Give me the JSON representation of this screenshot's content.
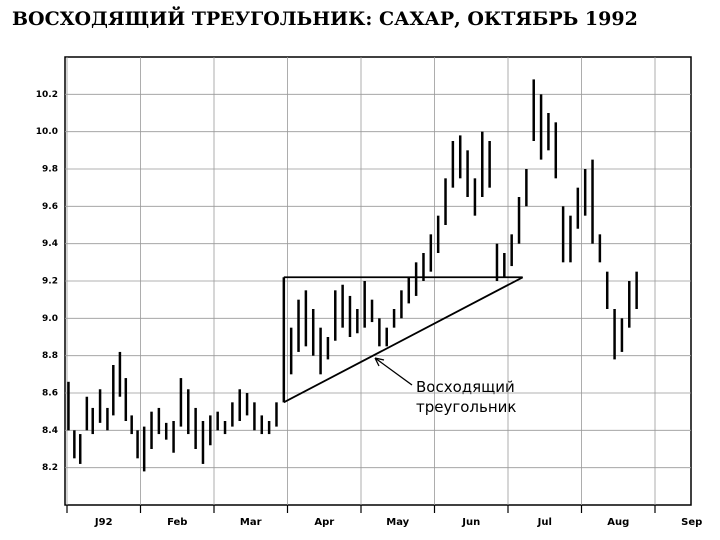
{
  "chart_data": {
    "type": "hilo",
    "title": "ВОСХОДЯЩИЙ ТРЕУГОЛЬНИК: САХАР, ОКТЯБРЬ 1992",
    "annotation": [
      "Восходящий",
      "треугольник"
    ],
    "color": "#000000",
    "xlim": [
      0,
      8.5
    ],
    "xticks": [
      {
        "value": 0,
        "label": "J92"
      },
      {
        "value": 1,
        "label": "Feb"
      },
      {
        "value": 2,
        "label": "Mar"
      },
      {
        "value": 3,
        "label": "Apr"
      },
      {
        "value": 4,
        "label": "May"
      },
      {
        "value": 5,
        "label": "Jun"
      },
      {
        "value": 6,
        "label": "Jul"
      },
      {
        "value": 7,
        "label": "Aug"
      },
      {
        "value": 8,
        "label": "Sep"
      }
    ],
    "ylim": [
      8.0,
      10.4
    ],
    "yticks": [
      {
        "value": 10.2,
        "label": "10.2"
      },
      {
        "value": 10,
        "label": "10.0"
      },
      9.8,
      9.6,
      9.4,
      9.2,
      {
        "value": 9,
        "label": "9.0"
      },
      8.8,
      8.6,
      8.4,
      8.2
    ],
    "grid": true,
    "x": [
      0.02,
      0.1,
      0.18,
      0.27,
      0.35,
      0.45,
      0.55,
      0.63,
      0.72,
      0.8,
      0.88,
      0.96,
      1.05,
      1.15,
      1.25,
      1.35,
      1.45,
      1.55,
      1.65,
      1.75,
      1.85,
      1.95,
      2.05,
      2.15,
      2.25,
      2.35,
      2.45,
      2.55,
      2.65,
      2.75,
      2.85,
      2.95,
      3.05,
      3.15,
      3.25,
      3.35,
      3.45,
      3.55,
      3.65,
      3.75,
      3.85,
      3.95,
      4.05,
      4.15,
      4.25,
      4.35,
      4.45,
      4.55,
      4.65,
      4.75,
      4.85,
      4.95,
      5.05,
      5.15,
      5.25,
      5.35,
      5.45,
      5.55,
      5.65,
      5.75,
      5.85,
      5.95,
      6.05,
      6.15,
      6.25,
      6.35,
      6.45,
      6.55,
      6.65,
      6.75,
      6.85,
      6.95,
      7.05,
      7.15,
      7.25,
      7.35,
      7.45,
      7.55,
      7.65,
      7.75
    ],
    "high": [
      8.66,
      8.4,
      8.38,
      8.58,
      8.52,
      8.62,
      8.52,
      8.75,
      8.82,
      8.68,
      8.48,
      8.4,
      8.42,
      8.5,
      8.52,
      8.44,
      8.45,
      8.68,
      8.62,
      8.52,
      8.45,
      8.48,
      8.5,
      8.45,
      8.55,
      8.62,
      8.6,
      8.55,
      8.48,
      8.45,
      8.55,
      9.22,
      8.95,
      9.1,
      9.15,
      9.05,
      8.95,
      8.9,
      9.15,
      9.18,
      9.12,
      9.05,
      9.2,
      9.1,
      9.0,
      8.95,
      9.05,
      9.15,
      9.22,
      9.3,
      9.35,
      9.45,
      9.55,
      9.75,
      9.95,
      9.98,
      9.9,
      9.75,
      10.0,
      9.95,
      9.4,
      9.35,
      9.45,
      9.65,
      9.8,
      10.28,
      10.2,
      10.1,
      10.05,
      9.6,
      9.55,
      9.7,
      9.8,
      9.85,
      9.45,
      9.25,
      9.05,
      9.0,
      9.2,
      9.25
    ],
    "low": [
      8.4,
      8.25,
      8.22,
      8.4,
      8.38,
      8.44,
      8.4,
      8.48,
      8.58,
      8.45,
      8.38,
      8.25,
      8.18,
      8.3,
      8.38,
      8.35,
      8.28,
      8.42,
      8.38,
      8.3,
      8.22,
      8.32,
      8.4,
      8.38,
      8.42,
      8.45,
      8.48,
      8.4,
      8.38,
      8.38,
      8.42,
      8.55,
      8.7,
      8.82,
      8.85,
      8.8,
      8.7,
      8.78,
      8.88,
      8.95,
      8.9,
      8.92,
      8.95,
      8.98,
      8.85,
      8.85,
      8.95,
      9.0,
      9.08,
      9.12,
      9.2,
      9.25,
      9.35,
      9.5,
      9.7,
      9.75,
      9.65,
      9.55,
      9.65,
      9.7,
      9.2,
      9.22,
      9.28,
      9.4,
      9.6,
      9.95,
      9.85,
      9.9,
      9.75,
      9.3,
      9.3,
      9.48,
      9.55,
      9.4,
      9.3,
      9.05,
      8.78,
      8.82,
      8.95,
      9.05
    ],
    "resistance": {
      "x": [
        2.95,
        6.2
      ],
      "y": 9.22
    },
    "support": {
      "x": [
        2.95,
        6.2
      ],
      "y": [
        8.55,
        9.22
      ]
    }
  }
}
